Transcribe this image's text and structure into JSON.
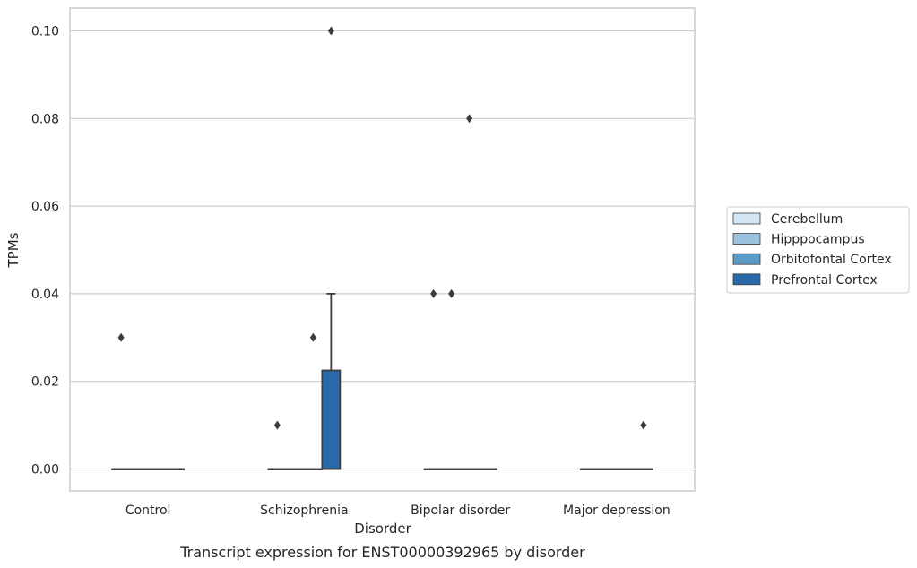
{
  "chart_data": {
    "type": "box",
    "title": "Transcript expression for ENST00000392965 by disorder",
    "xlabel": "Disorder",
    "ylabel": "TPMs",
    "ylim": [
      -0.005,
      0.105
    ],
    "yticks": [
      0.0,
      0.02,
      0.04,
      0.06,
      0.08,
      0.1
    ],
    "ytick_labels": [
      "0.00",
      "0.02",
      "0.04",
      "0.06",
      "0.08",
      "0.10"
    ],
    "categories": [
      "Control",
      "Schizophrenia",
      "Bipolar disorder",
      "Major depression"
    ],
    "grid": "horizontal",
    "legend_position": "right",
    "series": [
      {
        "name": "Cerebellum",
        "color": "#d3e4f3",
        "boxes": [
          {
            "q1": 0,
            "median": 0,
            "q3": 0,
            "whislo": 0,
            "whishi": 0,
            "fliers": [
              0.03
            ]
          },
          {
            "q1": 0,
            "median": 0,
            "q3": 0,
            "whislo": 0,
            "whishi": 0,
            "fliers": [
              0.01
            ]
          },
          {
            "q1": 0,
            "median": 0,
            "q3": 0,
            "whislo": 0,
            "whishi": 0,
            "fliers": [
              0.04
            ]
          },
          {
            "q1": 0,
            "median": 0,
            "q3": 0,
            "whislo": 0,
            "whishi": 0,
            "fliers": []
          }
        ]
      },
      {
        "name": "Hipppocampus",
        "color": "#9ac1dd",
        "boxes": [
          {
            "q1": 0,
            "median": 0,
            "q3": 0,
            "whislo": 0,
            "whishi": 0,
            "fliers": []
          },
          {
            "q1": 0,
            "median": 0,
            "q3": 0,
            "whislo": 0,
            "whishi": 0,
            "fliers": []
          },
          {
            "q1": 0,
            "median": 0,
            "q3": 0,
            "whislo": 0,
            "whishi": 0,
            "fliers": [
              0.04
            ]
          },
          {
            "q1": 0,
            "median": 0,
            "q3": 0,
            "whislo": 0,
            "whishi": 0,
            "fliers": []
          }
        ]
      },
      {
        "name": "Orbitofontal Cortex",
        "color": "#5b9bc8",
        "boxes": [
          {
            "q1": 0,
            "median": 0,
            "q3": 0,
            "whislo": 0,
            "whishi": 0,
            "fliers": []
          },
          {
            "q1": 0,
            "median": 0,
            "q3": 0,
            "whislo": 0,
            "whishi": 0,
            "fliers": [
              0.03
            ]
          },
          {
            "q1": 0,
            "median": 0,
            "q3": 0,
            "whislo": 0,
            "whishi": 0,
            "fliers": [
              0.08
            ]
          },
          {
            "q1": 0,
            "median": 0,
            "q3": 0,
            "whislo": 0,
            "whishi": 0,
            "fliers": []
          }
        ]
      },
      {
        "name": "Prefrontal Cortex",
        "color": "#2a69a8",
        "boxes": [
          {
            "q1": 0,
            "median": 0,
            "q3": 0,
            "whislo": 0,
            "whishi": 0,
            "fliers": []
          },
          {
            "q1": 0,
            "median": 0,
            "q3": 0.0225,
            "whislo": 0,
            "whishi": 0.04,
            "fliers": [
              0.1
            ]
          },
          {
            "q1": 0,
            "median": 0,
            "q3": 0,
            "whislo": 0,
            "whishi": 0,
            "fliers": []
          },
          {
            "q1": 0,
            "median": 0,
            "q3": 0,
            "whislo": 0,
            "whishi": 0,
            "fliers": [
              0.01
            ]
          }
        ]
      }
    ]
  }
}
